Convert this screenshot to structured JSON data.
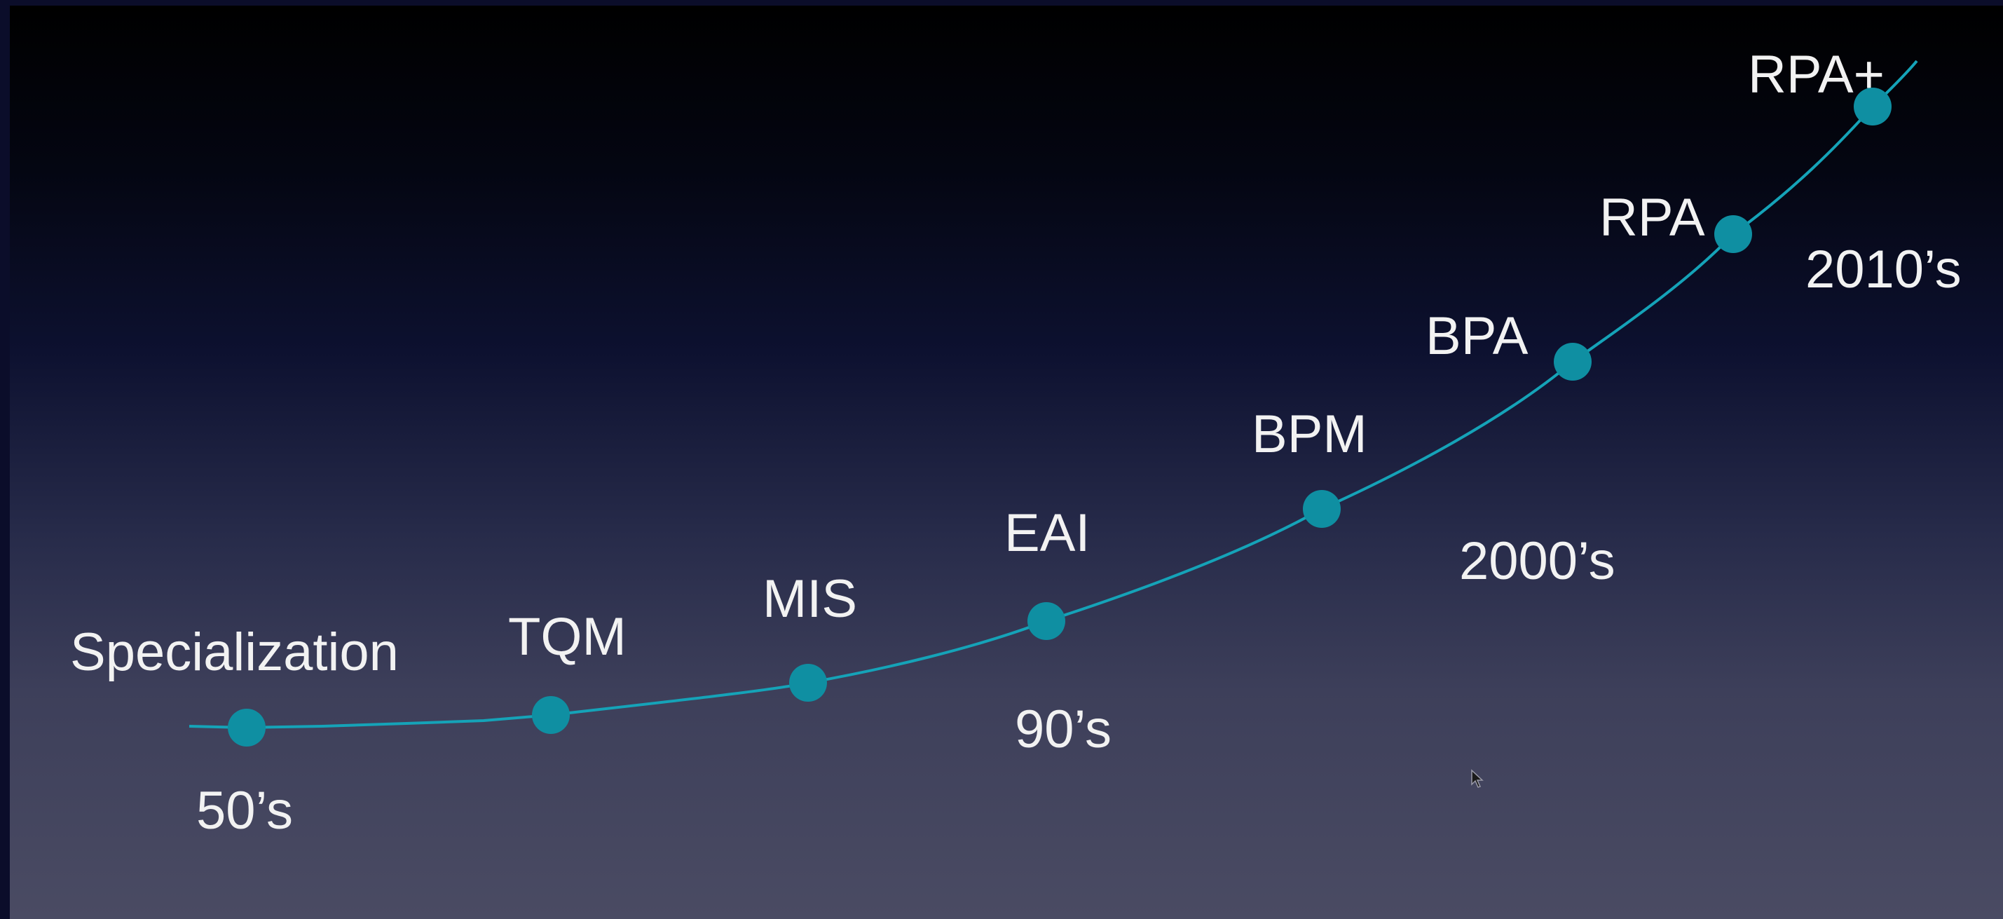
{
  "colors": {
    "curve": "#15a3b8",
    "node": "#0f8fa2",
    "text": "#f2f2f2"
  },
  "stages": [
    {
      "id": "specialization",
      "label": "Specialization"
    },
    {
      "id": "tqm",
      "label": "TQM"
    },
    {
      "id": "mis",
      "label": "MIS"
    },
    {
      "id": "eai",
      "label": "EAI"
    },
    {
      "id": "bpm",
      "label": "BPM"
    },
    {
      "id": "bpa",
      "label": "BPA"
    },
    {
      "id": "rpa",
      "label": "RPA"
    },
    {
      "id": "rpa-plus",
      "label": "RPA+"
    }
  ],
  "eras": [
    {
      "id": "50s",
      "label": "50’s"
    },
    {
      "id": "90s",
      "label": "90’s"
    },
    {
      "id": "2000s",
      "label": "2000’s"
    },
    {
      "id": "2010s",
      "label": "2010’s"
    }
  ],
  "pointer": {
    "icon": "mouse-pointer-icon"
  }
}
